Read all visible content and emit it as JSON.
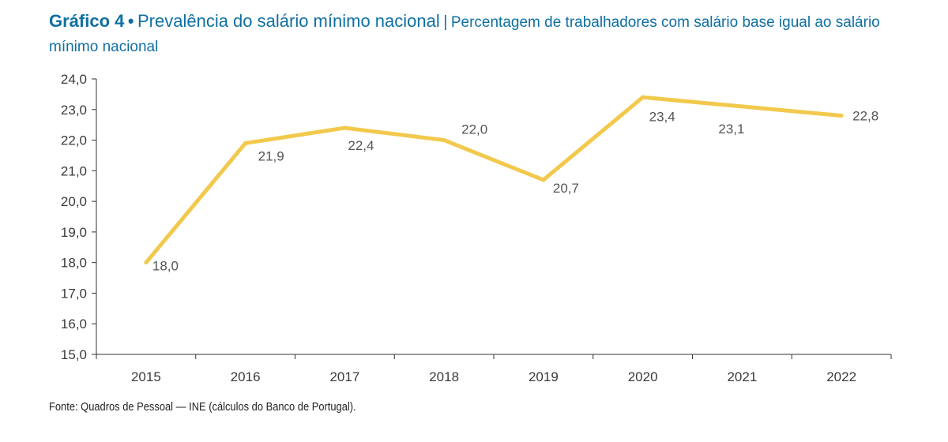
{
  "title": {
    "lead": "Gráfico 4",
    "bullet": "•",
    "main": "Prevalência do salário mínimo nacional",
    "separator": "|",
    "subtitle": "Percentagem de trabalhadores com salário base igual ao salário mínimo nacional"
  },
  "source": "Fonte: Quadros de Pessoal — INE (cálculos do Banco de Portugal).",
  "colors": {
    "title": "#0f6fa3",
    "line": "#f2c94c",
    "axis": "#333333"
  },
  "chart_data": {
    "type": "line",
    "categories": [
      "2015",
      "2016",
      "2017",
      "2018",
      "2019",
      "2020",
      "2021",
      "2022"
    ],
    "series": [
      {
        "values": [
          18.0,
          21.9,
          22.4,
          22.0,
          20.7,
          23.4,
          23.1,
          22.8
        ],
        "labels": [
          "18,0",
          "21,9",
          "22,4",
          "22,0",
          "20,7",
          "23,4",
          "23,1",
          "22,8"
        ]
      }
    ],
    "ylim": [
      15.0,
      24.0
    ],
    "yticks": [
      15.0,
      16.0,
      17.0,
      18.0,
      19.0,
      20.0,
      21.0,
      22.0,
      23.0,
      24.0
    ],
    "ytick_labels": [
      "15,0",
      "16,0",
      "17,0",
      "18,0",
      "19,0",
      "20,0",
      "21,0",
      "22,0",
      "23,0",
      "24,0"
    ],
    "grid": false,
    "legend": "none"
  }
}
